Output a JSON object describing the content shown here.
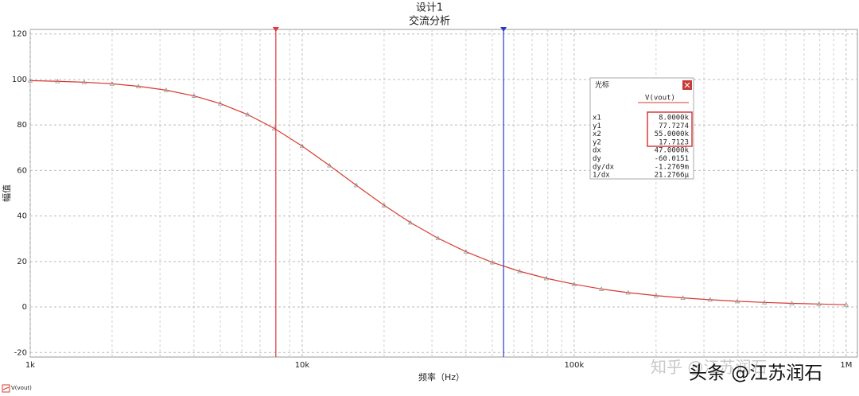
{
  "chart_data": {
    "type": "line",
    "title": "设计1",
    "subtitle": "交流分析",
    "x_label": "频率（Hz）",
    "y_label": "幅值",
    "log_x": true,
    "grid": true,
    "x": [
      1000,
      1260,
      1580,
      2000,
      2500,
      3160,
      4000,
      5000,
      6300,
      7900,
      10000,
      12600,
      15800,
      20000,
      25000,
      31600,
      40000,
      50000,
      63000,
      79000,
      100000,
      126000,
      158000,
      200000,
      251000,
      316000,
      398000,
      501000,
      631000,
      794000,
      1000000
    ],
    "series": [
      {
        "name": "V(vout)",
        "color": "#d83a2e",
        "values": [
          99.5,
          99.2,
          98.8,
          98.1,
          97.0,
          95.3,
          92.8,
          89.4,
          84.6,
          78.5,
          70.7,
          62.2,
          53.5,
          44.7,
          37.1,
          30.2,
          24.3,
          19.6,
          15.7,
          12.6,
          10.0,
          7.9,
          6.3,
          5.0,
          4.0,
          3.2,
          2.5,
          2.0,
          1.6,
          1.3,
          1.0
        ]
      }
    ],
    "xlim": [
      1000,
      1100000
    ],
    "xticks": [
      {
        "value": 1000,
        "label": "1k"
      },
      {
        "value": 10000,
        "label": "10k"
      },
      {
        "value": 100000,
        "label": "100k"
      },
      {
        "value": 1000000,
        "label": "1M"
      }
    ],
    "ylim": [
      -22,
      122
    ],
    "yticks": [
      -20,
      0,
      20,
      40,
      60,
      80,
      100,
      120
    ],
    "cursors": [
      {
        "x": 8000,
        "color": "#e03a3a"
      },
      {
        "x": 55000,
        "color": "#2a3ac8"
      }
    ],
    "cursor_panel": {
      "title": "光标",
      "column": "V(vout)",
      "rows": [
        [
          "x1",
          "8.0000k"
        ],
        [
          "y1",
          "77.7274"
        ],
        [
          "x2",
          "55.0000k"
        ],
        [
          "y2",
          "17.7123"
        ],
        [
          "dx",
          "47.0000k"
        ],
        [
          "dy",
          "-60.0151"
        ],
        [
          "dy/dx",
          "-1.2769m"
        ],
        [
          "1/dx",
          "21.2766µ"
        ]
      ]
    }
  },
  "watermarks": [
    "知乎 @江苏润石",
    "头条 @江苏润石"
  ]
}
